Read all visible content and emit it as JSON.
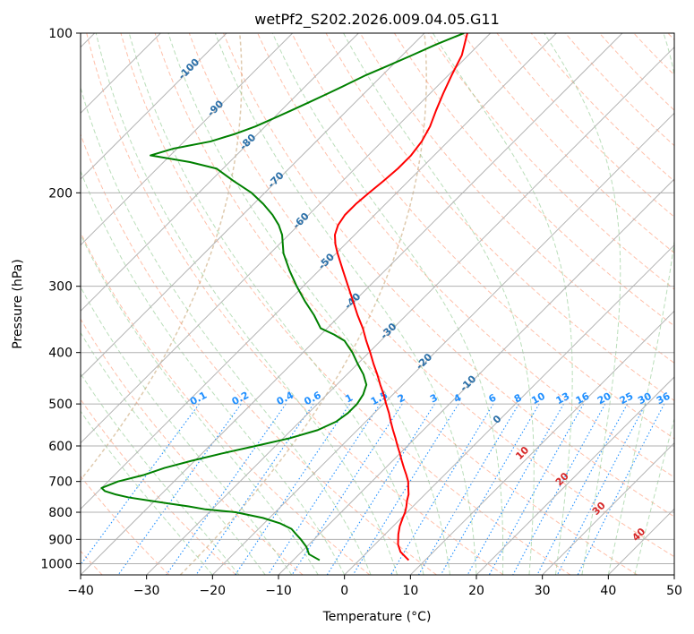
{
  "chart_data": {
    "type": "line",
    "title": "wetPf2_S202.2026.009.04.05.G11",
    "xlabel": "Temperature (°C)",
    "ylabel": "Pressure (hPa)",
    "xlim": [
      -40,
      50
    ],
    "ylim": [
      1050,
      100
    ],
    "y_scale": "log",
    "x_ticks": [
      "−40",
      "−30",
      "−20",
      "−10",
      "0",
      "10",
      "20",
      "30",
      "40",
      "50"
    ],
    "y_ticks": [
      "100",
      "200",
      "300",
      "400",
      "500",
      "600",
      "700",
      "800",
      "900",
      "1000"
    ],
    "grid": true,
    "skew": true,
    "series": [
      {
        "color": "#ff0000",
        "pressure": [
          985,
          950,
          920,
          880,
          850,
          820,
          800,
          780,
          760,
          740,
          720,
          700,
          680,
          660,
          640,
          620,
          600,
          580,
          560,
          540,
          520,
          500,
          480,
          460,
          440,
          420,
          400,
          380,
          360,
          340,
          320,
          300,
          280,
          260,
          250,
          240,
          230,
          220,
          210,
          200,
          190,
          180,
          170,
          160,
          150,
          140,
          130,
          120,
          110,
          100
        ],
        "temperature": [
          7.5,
          5.0,
          3.5,
          2.0,
          1.0,
          0.2,
          -0.3,
          -1.0,
          -1.8,
          -2.5,
          -3.5,
          -4.5,
          -5.8,
          -7.2,
          -8.6,
          -10.0,
          -11.5,
          -13.0,
          -14.6,
          -16.2,
          -17.8,
          -19.6,
          -21.4,
          -23.4,
          -25.4,
          -27.6,
          -29.8,
          -32.2,
          -34.6,
          -37.4,
          -40.2,
          -43.2,
          -46.4,
          -49.8,
          -51.5,
          -53.0,
          -54.0,
          -54.5,
          -54.5,
          -54.2,
          -53.8,
          -53.5,
          -53.5,
          -54.0,
          -55.0,
          -56.5,
          -58.0,
          -59.5,
          -61.0,
          -63.5
        ]
      },
      {
        "color": "#008000",
        "pressure": [
          985,
          960,
          930,
          900,
          880,
          860,
          840,
          820,
          800,
          790,
          780,
          770,
          760,
          750,
          740,
          730,
          720,
          700,
          680,
          660,
          640,
          620,
          600,
          580,
          560,
          540,
          520,
          500,
          480,
          460,
          440,
          420,
          400,
          380,
          370,
          360,
          340,
          320,
          300,
          280,
          260,
          240,
          230,
          220,
          210,
          200,
          190,
          180,
          175,
          170,
          165,
          160,
          155,
          150,
          145,
          140,
          135,
          130,
          125,
          120,
          115,
          110,
          105,
          100
        ],
        "dewpoint": [
          -6.0,
          -8.5,
          -10.0,
          -12.0,
          -13.5,
          -15.0,
          -17.5,
          -21.0,
          -26.0,
          -31.0,
          -34.0,
          -37.5,
          -41.0,
          -44.5,
          -47.0,
          -49.0,
          -50.0,
          -48.5,
          -45.5,
          -43.5,
          -40.5,
          -37.0,
          -33.0,
          -29.0,
          -26.0,
          -24.5,
          -24.0,
          -24.0,
          -24.5,
          -25.5,
          -27.5,
          -30.0,
          -32.5,
          -35.5,
          -38.0,
          -41.0,
          -44.0,
          -47.5,
          -51.0,
          -54.5,
          -58.0,
          -61.0,
          -63.0,
          -65.5,
          -68.5,
          -72.0,
          -76.5,
          -81.0,
          -86.0,
          -93.0,
          -90.5,
          -86.0,
          -83.5,
          -81.5,
          -80.0,
          -78.5,
          -77.0,
          -75.5,
          -74.0,
          -72.5,
          -70.5,
          -68.5,
          -66.5,
          -64.0
        ]
      }
    ],
    "isotherm_labels": [
      "-100",
      "-90",
      "-80",
      "-70",
      "-60",
      "-50",
      "-40",
      "-30",
      "-20",
      "-10",
      "0",
      "10",
      "20",
      "30",
      "40"
    ],
    "mixing_ratio_labels": [
      "0.1",
      "0.2",
      "0.4",
      "0.6",
      "1",
      "1.5",
      "2",
      "3",
      "4",
      "6",
      "8",
      "10",
      "13",
      "16",
      "20",
      "25",
      "30",
      "36"
    ],
    "colors": {
      "isotherm": "#b4b4b4",
      "dry_adiabat": "#ff8c64",
      "moist_adiabat": "#8cc88c",
      "mixing_ratio": "#1f8fff",
      "frost_line": "#d2b48c"
    }
  }
}
